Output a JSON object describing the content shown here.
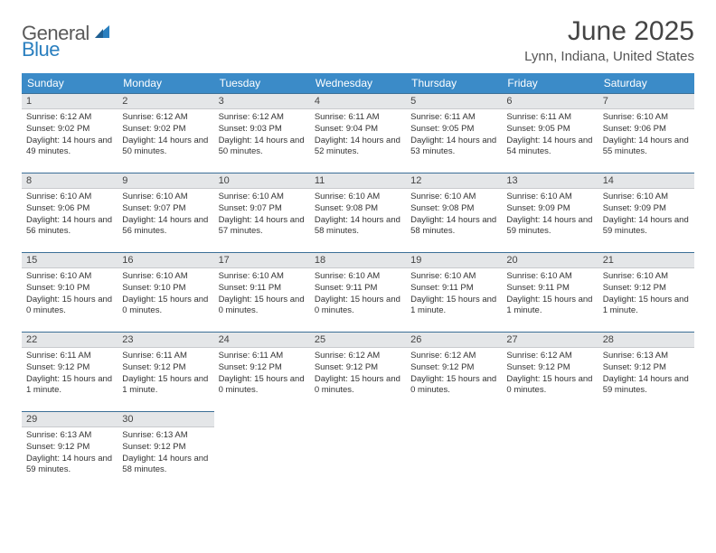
{
  "logo": {
    "text1": "General",
    "text2": "Blue"
  },
  "title": "June 2025",
  "location": "Lynn, Indiana, United States",
  "colors": {
    "header_bg": "#3b8bc8",
    "header_text": "#ffffff",
    "daynum_bg": "#e4e6e8",
    "daynum_border_top": "#3b6f97",
    "logo_gray": "#5a5a5a",
    "logo_blue": "#2a7fbf"
  },
  "weekdays": [
    "Sunday",
    "Monday",
    "Tuesday",
    "Wednesday",
    "Thursday",
    "Friday",
    "Saturday"
  ],
  "days": [
    {
      "n": 1,
      "sunrise": "6:12 AM",
      "sunset": "9:02 PM",
      "daylight": "14 hours and 49 minutes."
    },
    {
      "n": 2,
      "sunrise": "6:12 AM",
      "sunset": "9:02 PM",
      "daylight": "14 hours and 50 minutes."
    },
    {
      "n": 3,
      "sunrise": "6:12 AM",
      "sunset": "9:03 PM",
      "daylight": "14 hours and 50 minutes."
    },
    {
      "n": 4,
      "sunrise": "6:11 AM",
      "sunset": "9:04 PM",
      "daylight": "14 hours and 52 minutes."
    },
    {
      "n": 5,
      "sunrise": "6:11 AM",
      "sunset": "9:05 PM",
      "daylight": "14 hours and 53 minutes."
    },
    {
      "n": 6,
      "sunrise": "6:11 AM",
      "sunset": "9:05 PM",
      "daylight": "14 hours and 54 minutes."
    },
    {
      "n": 7,
      "sunrise": "6:10 AM",
      "sunset": "9:06 PM",
      "daylight": "14 hours and 55 minutes."
    },
    {
      "n": 8,
      "sunrise": "6:10 AM",
      "sunset": "9:06 PM",
      "daylight": "14 hours and 56 minutes."
    },
    {
      "n": 9,
      "sunrise": "6:10 AM",
      "sunset": "9:07 PM",
      "daylight": "14 hours and 56 minutes."
    },
    {
      "n": 10,
      "sunrise": "6:10 AM",
      "sunset": "9:07 PM",
      "daylight": "14 hours and 57 minutes."
    },
    {
      "n": 11,
      "sunrise": "6:10 AM",
      "sunset": "9:08 PM",
      "daylight": "14 hours and 58 minutes."
    },
    {
      "n": 12,
      "sunrise": "6:10 AM",
      "sunset": "9:08 PM",
      "daylight": "14 hours and 58 minutes."
    },
    {
      "n": 13,
      "sunrise": "6:10 AM",
      "sunset": "9:09 PM",
      "daylight": "14 hours and 59 minutes."
    },
    {
      "n": 14,
      "sunrise": "6:10 AM",
      "sunset": "9:09 PM",
      "daylight": "14 hours and 59 minutes."
    },
    {
      "n": 15,
      "sunrise": "6:10 AM",
      "sunset": "9:10 PM",
      "daylight": "15 hours and 0 minutes."
    },
    {
      "n": 16,
      "sunrise": "6:10 AM",
      "sunset": "9:10 PM",
      "daylight": "15 hours and 0 minutes."
    },
    {
      "n": 17,
      "sunrise": "6:10 AM",
      "sunset": "9:11 PM",
      "daylight": "15 hours and 0 minutes."
    },
    {
      "n": 18,
      "sunrise": "6:10 AM",
      "sunset": "9:11 PM",
      "daylight": "15 hours and 0 minutes."
    },
    {
      "n": 19,
      "sunrise": "6:10 AM",
      "sunset": "9:11 PM",
      "daylight": "15 hours and 1 minute."
    },
    {
      "n": 20,
      "sunrise": "6:10 AM",
      "sunset": "9:11 PM",
      "daylight": "15 hours and 1 minute."
    },
    {
      "n": 21,
      "sunrise": "6:10 AM",
      "sunset": "9:12 PM",
      "daylight": "15 hours and 1 minute."
    },
    {
      "n": 22,
      "sunrise": "6:11 AM",
      "sunset": "9:12 PM",
      "daylight": "15 hours and 1 minute."
    },
    {
      "n": 23,
      "sunrise": "6:11 AM",
      "sunset": "9:12 PM",
      "daylight": "15 hours and 1 minute."
    },
    {
      "n": 24,
      "sunrise": "6:11 AM",
      "sunset": "9:12 PM",
      "daylight": "15 hours and 0 minutes."
    },
    {
      "n": 25,
      "sunrise": "6:12 AM",
      "sunset": "9:12 PM",
      "daylight": "15 hours and 0 minutes."
    },
    {
      "n": 26,
      "sunrise": "6:12 AM",
      "sunset": "9:12 PM",
      "daylight": "15 hours and 0 minutes."
    },
    {
      "n": 27,
      "sunrise": "6:12 AM",
      "sunset": "9:12 PM",
      "daylight": "15 hours and 0 minutes."
    },
    {
      "n": 28,
      "sunrise": "6:13 AM",
      "sunset": "9:12 PM",
      "daylight": "14 hours and 59 minutes."
    },
    {
      "n": 29,
      "sunrise": "6:13 AM",
      "sunset": "9:12 PM",
      "daylight": "14 hours and 59 minutes."
    },
    {
      "n": 30,
      "sunrise": "6:13 AM",
      "sunset": "9:12 PM",
      "daylight": "14 hours and 58 minutes."
    }
  ],
  "labels": {
    "sunrise": "Sunrise: ",
    "sunset": "Sunset: ",
    "daylight": "Daylight: "
  },
  "layout": {
    "first_day_offset": 0,
    "total_cells": 35
  }
}
